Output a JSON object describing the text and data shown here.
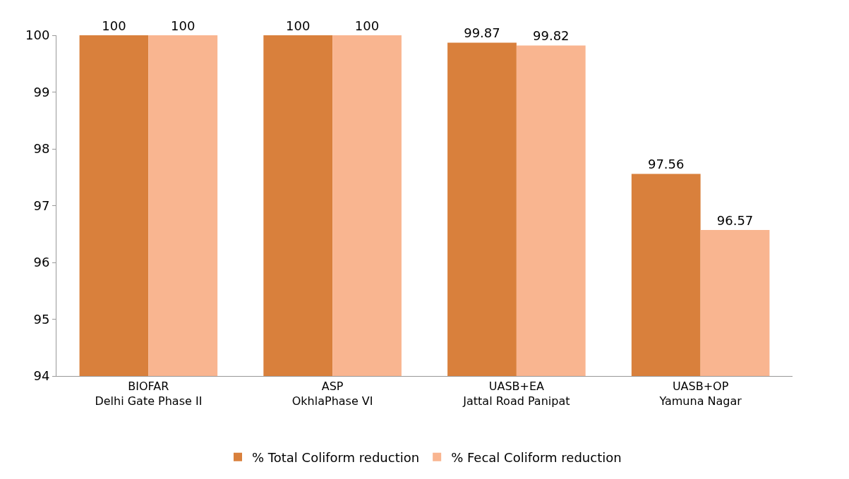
{
  "chart_data": {
    "type": "bar",
    "categories": [
      "BIOFAR\nDelhi Gate Phase II",
      "ASP\nOkhlaPhase VI",
      "UASB+EA\nJattal Road Panipat",
      "UASB+OP\nYamuna Nagar"
    ],
    "series": [
      {
        "name": "% Total Coliform reduction",
        "color": "#d9803c",
        "values": [
          100,
          100,
          99.87,
          97.56
        ]
      },
      {
        "name": "% Fecal Coliform reduction",
        "color": "#f9b590",
        "values": [
          100,
          100,
          99.82,
          96.57
        ]
      }
    ],
    "ylim": [
      94,
      100
    ],
    "yticks": [
      94,
      95,
      96,
      97,
      98,
      99,
      100
    ],
    "data_labels": true,
    "grid": false,
    "legend": "bottom"
  }
}
